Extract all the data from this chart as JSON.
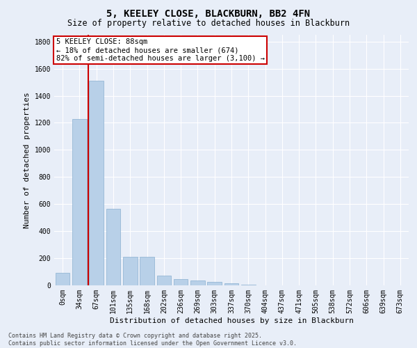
{
  "title": "5, KEELEY CLOSE, BLACKBURN, BB2 4FN",
  "subtitle": "Size of property relative to detached houses in Blackburn",
  "xlabel": "Distribution of detached houses by size in Blackburn",
  "ylabel": "Number of detached properties",
  "categories": [
    "0sqm",
    "34sqm",
    "67sqm",
    "101sqm",
    "135sqm",
    "168sqm",
    "202sqm",
    "236sqm",
    "269sqm",
    "303sqm",
    "337sqm",
    "370sqm",
    "404sqm",
    "437sqm",
    "471sqm",
    "505sqm",
    "538sqm",
    "572sqm",
    "606sqm",
    "639sqm",
    "673sqm"
  ],
  "values": [
    95,
    1230,
    1510,
    565,
    210,
    210,
    70,
    45,
    35,
    25,
    15,
    5,
    0,
    0,
    0,
    0,
    0,
    0,
    0,
    0,
    0
  ],
  "bar_color": "#b8d0e8",
  "bar_edge_color": "#8ab0d0",
  "vline_color": "#cc0000",
  "vline_x": 1.5,
  "annotation_text": "5 KEELEY CLOSE: 88sqm\n← 18% of detached houses are smaller (674)\n82% of semi-detached houses are larger (3,100) →",
  "annotation_box_color": "#ffffff",
  "annotation_box_edge_color": "#cc0000",
  "ylim": [
    0,
    1850
  ],
  "yticks": [
    0,
    200,
    400,
    600,
    800,
    1000,
    1200,
    1400,
    1600,
    1800
  ],
  "background_color": "#e8eef8",
  "grid_color": "#ffffff",
  "footer_line1": "Contains HM Land Registry data © Crown copyright and database right 2025.",
  "footer_line2": "Contains public sector information licensed under the Open Government Licence v3.0.",
  "title_fontsize": 10,
  "subtitle_fontsize": 8.5,
  "xlabel_fontsize": 8,
  "ylabel_fontsize": 8,
  "tick_fontsize": 7,
  "annotation_fontsize": 7.5,
  "footer_fontsize": 6
}
